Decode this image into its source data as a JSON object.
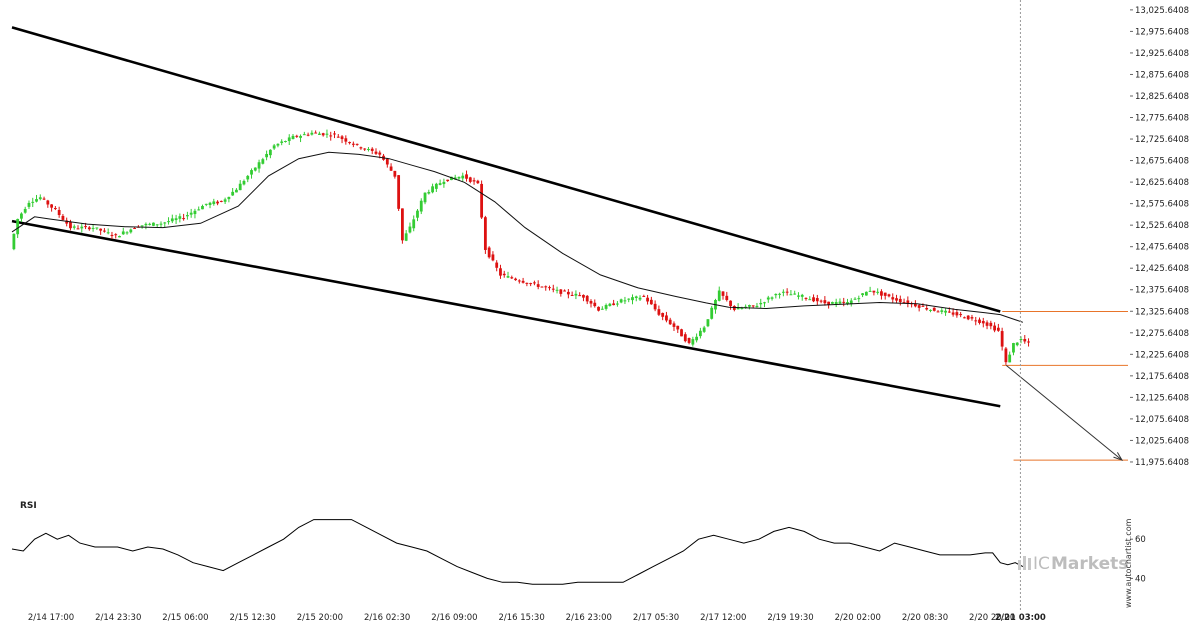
{
  "chart_data": {
    "type": "candlestick",
    "title": "",
    "price_axis": {
      "ylim": [
        11950,
        13030
      ],
      "ticks": [
        13025.6408,
        12975.6408,
        12925.6408,
        12875.6408,
        12825.6408,
        12775.6408,
        12725.6408,
        12675.6408,
        12625.6408,
        12575.6408,
        12525.6408,
        12475.6408,
        12425.6408,
        12375.6408,
        12325.6408,
        12275.6408,
        12225.6408,
        12175.6408,
        12125.6408,
        12075.6408,
        12025.6408,
        11975.6408
      ],
      "tick_labels": [
        "13,025.6408",
        "12,975.6408",
        "12,925.6408",
        "12,875.6408",
        "12,825.6408",
        "12,775.6408",
        "12,725.6408",
        "12,675.6408",
        "12,625.6408",
        "12,575.6408",
        "12,525.6408",
        "12,475.6408",
        "12,425.6408",
        "12,375.6408",
        "12,325.6408",
        "12,275.6408",
        "12,225.6408",
        "12,175.6408",
        "12,125.6408",
        "12,075.6408",
        "12,025.6408",
        "11,975.6408"
      ]
    },
    "time_axis": {
      "labels": [
        "2/14 17:00",
        "2/14 23:30",
        "2/15 06:00",
        "2/15 12:30",
        "2/15 20:00",
        "2/16 02:30",
        "2/16 09:00",
        "2/16 15:30",
        "2/16 23:00",
        "2/17 05:30",
        "2/17 12:00",
        "2/19 19:30",
        "2/20 02:00",
        "2/20 08:30",
        "2/20 20:00",
        "2/21 03:00"
      ],
      "highlight": "2/21 03:00",
      "ticks_per_label": 10,
      "total_slots": 166,
      "current_slot": 150
    },
    "price_path": [
      [
        0,
        12470
      ],
      [
        2,
        12540
      ],
      [
        5,
        12580
      ],
      [
        8,
        12590
      ],
      [
        12,
        12560
      ],
      [
        16,
        12520
      ],
      [
        22,
        12520
      ],
      [
        28,
        12500
      ],
      [
        34,
        12525
      ],
      [
        40,
        12530
      ],
      [
        46,
        12545
      ],
      [
        52,
        12575
      ],
      [
        56,
        12580
      ],
      [
        60,
        12610
      ],
      [
        65,
        12660
      ],
      [
        70,
        12710
      ],
      [
        75,
        12730
      ],
      [
        80,
        12740
      ],
      [
        86,
        12735
      ],
      [
        92,
        12710
      ],
      [
        98,
        12690
      ],
      [
        102,
        12640
      ],
      [
        104,
        12490
      ],
      [
        106,
        12520
      ],
      [
        110,
        12600
      ],
      [
        115,
        12630
      ],
      [
        120,
        12640
      ],
      [
        124,
        12620
      ],
      [
        126,
        12470
      ],
      [
        130,
        12410
      ],
      [
        138,
        12390
      ],
      [
        146,
        12370
      ],
      [
        152,
        12360
      ],
      [
        156,
        12330
      ],
      [
        162,
        12350
      ],
      [
        168,
        12360
      ],
      [
        172,
        12320
      ],
      [
        176,
        12290
      ],
      [
        180,
        12250
      ],
      [
        184,
        12290
      ],
      [
        188,
        12370
      ],
      [
        192,
        12330
      ],
      [
        198,
        12340
      ],
      [
        204,
        12370
      ],
      [
        210,
        12360
      ],
      [
        216,
        12345
      ],
      [
        222,
        12345
      ],
      [
        228,
        12375
      ],
      [
        234,
        12355
      ],
      [
        238,
        12345
      ],
      [
        244,
        12330
      ],
      [
        250,
        12320
      ],
      [
        254,
        12310
      ],
      [
        258,
        12300
      ],
      [
        262,
        12280
      ],
      [
        264,
        12205
      ],
      [
        266,
        12250
      ],
      [
        268,
        12260
      ],
      [
        270,
        12250
      ]
    ],
    "moving_average": [
      [
        0,
        12510
      ],
      [
        6,
        12545
      ],
      [
        10,
        12540
      ],
      [
        20,
        12528
      ],
      [
        30,
        12522
      ],
      [
        40,
        12520
      ],
      [
        50,
        12530
      ],
      [
        60,
        12570
      ],
      [
        68,
        12640
      ],
      [
        76,
        12680
      ],
      [
        84,
        12695
      ],
      [
        92,
        12690
      ],
      [
        100,
        12680
      ],
      [
        106,
        12665
      ],
      [
        112,
        12650
      ],
      [
        120,
        12625
      ],
      [
        128,
        12580
      ],
      [
        136,
        12520
      ],
      [
        146,
        12460
      ],
      [
        156,
        12410
      ],
      [
        166,
        12380
      ],
      [
        176,
        12360
      ],
      [
        184,
        12345
      ],
      [
        190,
        12335
      ],
      [
        200,
        12332
      ],
      [
        210,
        12338
      ],
      [
        220,
        12342
      ],
      [
        230,
        12346
      ],
      [
        240,
        12343
      ],
      [
        250,
        12330
      ],
      [
        258,
        12322
      ],
      [
        262,
        12318
      ],
      [
        268,
        12300
      ]
    ],
    "channel_lines": [
      {
        "name": "upper",
        "from": [
          0,
          12985
        ],
        "to": [
          262,
          12325
        ]
      },
      {
        "name": "lower",
        "from": [
          0,
          12535
        ],
        "to": [
          262,
          12105
        ]
      }
    ],
    "projection": {
      "from": [
        262,
        12200
      ],
      "to": [
        323,
        11980
      ]
    },
    "levels": [
      {
        "value": 12325,
        "from": 262
      },
      {
        "value": 12200,
        "from": 262
      },
      {
        "value": 11980,
        "from": 265
      }
    ],
    "rsi": {
      "label": "RSI",
      "range": [
        30,
        80
      ],
      "ticks": [
        60,
        40
      ],
      "values": [
        [
          0,
          55
        ],
        [
          3,
          54
        ],
        [
          6,
          60
        ],
        [
          9,
          63
        ],
        [
          12,
          60
        ],
        [
          15,
          62
        ],
        [
          18,
          58
        ],
        [
          22,
          56
        ],
        [
          28,
          56
        ],
        [
          32,
          54
        ],
        [
          36,
          56
        ],
        [
          40,
          55
        ],
        [
          44,
          52
        ],
        [
          48,
          48
        ],
        [
          52,
          46
        ],
        [
          56,
          44
        ],
        [
          60,
          48
        ],
        [
          64,
          52
        ],
        [
          68,
          56
        ],
        [
          72,
          60
        ],
        [
          76,
          66
        ],
        [
          80,
          70
        ],
        [
          86,
          70
        ],
        [
          90,
          70
        ],
        [
          94,
          66
        ],
        [
          98,
          62
        ],
        [
          102,
          58
        ],
        [
          106,
          56
        ],
        [
          110,
          54
        ],
        [
          114,
          50
        ],
        [
          118,
          46
        ],
        [
          122,
          43
        ],
        [
          126,
          40
        ],
        [
          130,
          38
        ],
        [
          134,
          38
        ],
        [
          138,
          37
        ],
        [
          142,
          37
        ],
        [
          146,
          37
        ],
        [
          150,
          38
        ],
        [
          154,
          38
        ],
        [
          158,
          38
        ],
        [
          162,
          38
        ],
        [
          166,
          42
        ],
        [
          170,
          46
        ],
        [
          174,
          50
        ],
        [
          178,
          54
        ],
        [
          182,
          60
        ],
        [
          186,
          62
        ],
        [
          190,
          60
        ],
        [
          194,
          58
        ],
        [
          198,
          60
        ],
        [
          202,
          64
        ],
        [
          206,
          66
        ],
        [
          210,
          64
        ],
        [
          214,
          60
        ],
        [
          218,
          58
        ],
        [
          222,
          58
        ],
        [
          226,
          56
        ],
        [
          230,
          54
        ],
        [
          234,
          58
        ],
        [
          238,
          56
        ],
        [
          242,
          54
        ],
        [
          246,
          52
        ],
        [
          250,
          52
        ],
        [
          254,
          52
        ],
        [
          258,
          53
        ],
        [
          260,
          53
        ],
        [
          262,
          48
        ],
        [
          264,
          47
        ],
        [
          266,
          48
        ],
        [
          268,
          46
        ]
      ]
    }
  },
  "watermark": {
    "pre": "IC",
    "brand": "Markets",
    "credit": "www.autochartist.com"
  },
  "colors": {
    "up": "#33cc33",
    "down": "#dd1111",
    "level": "#e8742a",
    "ma": "#111111",
    "vline": "#999999"
  }
}
